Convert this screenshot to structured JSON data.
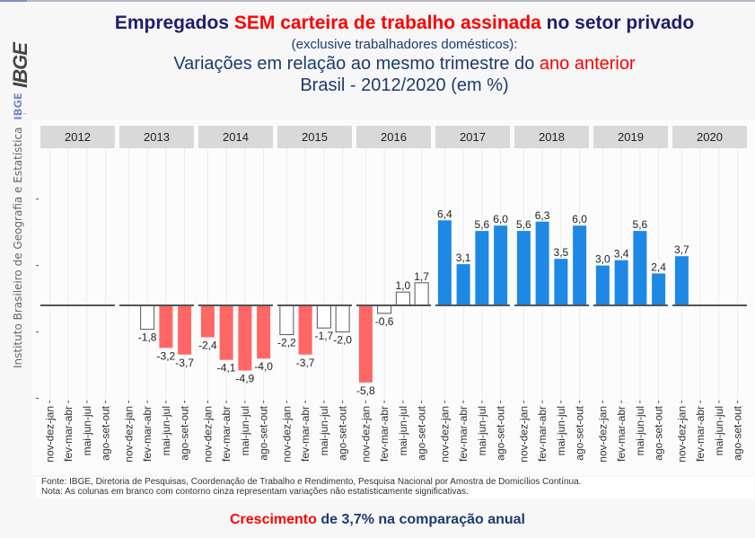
{
  "header": {
    "title_parts": {
      "part1": "Empregados ",
      "part2": "SEM carteira de trabalho assinada",
      "part3": " no setor privado"
    },
    "subtitle": "(exclusive trabalhadores domésticos):",
    "line3_parts": {
      "part1": "Variações em relação ao mesmo trimestre do ",
      "part2": "ano anterior"
    },
    "line4": "Brasil - 2012/2020 (em %)"
  },
  "sidebar": {
    "logo": "IBGE",
    "institution": "Instituto Brasileiro de Geografia e Estatística",
    "ibge_label": "IBGE"
  },
  "colors": {
    "significant_negative": "#ff6666",
    "significant_positive": "#1e88e5",
    "not_significant_fill": "#ffffff",
    "not_significant_stroke": "#555555",
    "strip_bg": "#d9d9d9"
  },
  "chart_data": {
    "type": "bar",
    "title": "Empregados SEM carteira de trabalho assinada no setor privado — Variações em relação ao mesmo trimestre do ano anterior, Brasil - 2012/2020 (em %)",
    "xlabel": "",
    "ylabel": "",
    "ylim": [
      -7,
      8
    ],
    "yticks": [
      -7,
      -2,
      3,
      8
    ],
    "ytick_labels_visible": false,
    "grid": true,
    "legend": "none",
    "facets": [
      "2012",
      "2013",
      "2014",
      "2015",
      "2016",
      "2017",
      "2018",
      "2019",
      "2020"
    ],
    "quarters": [
      "nov-dez-jan",
      "fev-mar-abr",
      "mai-jun-jul",
      "ago-set-out"
    ],
    "panels": [
      {
        "year": "2012",
        "values": [
          null,
          null,
          null,
          null
        ],
        "labels": [
          "",
          "",
          "",
          ""
        ],
        "significant": [
          false,
          false,
          false,
          false
        ]
      },
      {
        "year": "2013",
        "values": [
          null,
          -1.8,
          -3.2,
          -3.7
        ],
        "labels": [
          "",
          "-1,8",
          "-3,2",
          "-3,7"
        ],
        "significant": [
          false,
          false,
          true,
          true
        ]
      },
      {
        "year": "2014",
        "values": [
          -2.4,
          -4.1,
          -4.9,
          -4.0
        ],
        "labels": [
          "-2,4",
          "-4,1",
          "-4,9",
          "-4,0"
        ],
        "significant": [
          true,
          true,
          true,
          true
        ]
      },
      {
        "year": "2015",
        "values": [
          -2.2,
          -3.7,
          -1.7,
          -2.0
        ],
        "labels": [
          "-2,2",
          "-3,7",
          "-1,7",
          "-2,0"
        ],
        "significant": [
          false,
          true,
          false,
          false
        ]
      },
      {
        "year": "2016",
        "values": [
          -5.8,
          -0.6,
          1.0,
          1.7
        ],
        "labels": [
          "-5,8",
          "-0,6",
          "1,0",
          "1,7"
        ],
        "significant": [
          true,
          false,
          false,
          false
        ]
      },
      {
        "year": "2017",
        "values": [
          6.4,
          3.1,
          5.6,
          6.0
        ],
        "labels": [
          "6,4",
          "3,1",
          "5,6",
          "6,0"
        ],
        "significant": [
          true,
          true,
          true,
          true
        ]
      },
      {
        "year": "2018",
        "values": [
          5.6,
          6.3,
          3.5,
          6.0
        ],
        "labels": [
          "5,6",
          "6,3",
          "3,5",
          "6,0"
        ],
        "significant": [
          true,
          true,
          true,
          true
        ]
      },
      {
        "year": "2019",
        "values": [
          3.0,
          3.4,
          5.6,
          2.4
        ],
        "labels": [
          "3,0",
          "3,4",
          "5,6",
          "2,4"
        ],
        "significant": [
          true,
          true,
          true,
          true
        ]
      },
      {
        "year": "2020",
        "values": [
          3.7,
          null,
          null,
          null
        ],
        "labels": [
          "3,7",
          "",
          "",
          ""
        ],
        "significant": [
          true,
          false,
          false,
          false
        ]
      }
    ]
  },
  "footer": {
    "source": "Fonte: IBGE, Diretoria de Pesquisas, Coordenação de Trabalho e Rendimento, Pesquisa Nacional por Amostra de Domicílios Contínua.",
    "note": "Nota: As colunas em branco com contorno cinza representam variações não estatisticamente significativas."
  },
  "summary": {
    "part1": "Crescimento",
    "part2": " de 3,7% na comparação anual"
  }
}
